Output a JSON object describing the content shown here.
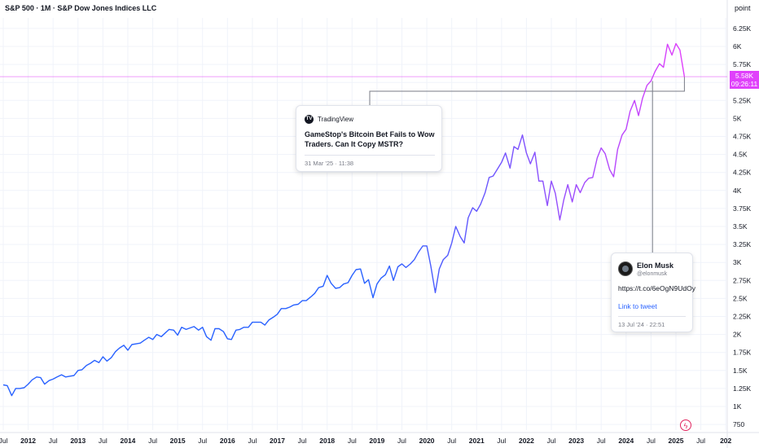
{
  "header": {
    "title": "S&P 500 · 1M · S&P Dow Jones Indices LLC"
  },
  "axis": {
    "unit_label": "point"
  },
  "price_tag": {
    "price": "5.58K",
    "countdown": "09:26:11",
    "color": "#e040fb"
  },
  "chart_data": {
    "type": "line",
    "title": "S&P 500 · 1M · S&P Dow Jones Indices LLC",
    "xlabel": "",
    "ylabel": "point",
    "ylim": [
      700,
      6500
    ],
    "y_ticks": [
      750,
      1000,
      1250,
      1500,
      1750,
      2000,
      2250,
      2500,
      2750,
      3000,
      3250,
      3500,
      3750,
      4000,
      4250,
      4500,
      4750,
      5000,
      5250,
      5500,
      5750,
      6000,
      6250
    ],
    "y_tick_labels": [
      "750",
      "1K",
      "1.25K",
      "1.5K",
      "1.75K",
      "2K",
      "2.25K",
      "2.5K",
      "2.75K",
      "3K",
      "3.25K",
      "3.5K",
      "3.75K",
      "4K",
      "4.25K",
      "4.5K",
      "4.75K",
      "5K",
      "5.25K",
      "5.5K",
      "5.75K",
      "6K",
      "6.25K"
    ],
    "x_ticks": [
      {
        "t": 2011.5,
        "label": "Jul"
      },
      {
        "t": 2012,
        "label": "2012"
      },
      {
        "t": 2012.5,
        "label": "Jul"
      },
      {
        "t": 2013,
        "label": "2013"
      },
      {
        "t": 2013.5,
        "label": "Jul"
      },
      {
        "t": 2014,
        "label": "2014"
      },
      {
        "t": 2014.5,
        "label": "Jul"
      },
      {
        "t": 2015,
        "label": "2015"
      },
      {
        "t": 2015.5,
        "label": "Jul"
      },
      {
        "t": 2016,
        "label": "2016"
      },
      {
        "t": 2016.5,
        "label": "Jul"
      },
      {
        "t": 2017,
        "label": "2017"
      },
      {
        "t": 2017.5,
        "label": "Jul"
      },
      {
        "t": 2018,
        "label": "2018"
      },
      {
        "t": 2018.5,
        "label": "Jul"
      },
      {
        "t": 2019,
        "label": "2019"
      },
      {
        "t": 2019.5,
        "label": "Jul"
      },
      {
        "t": 2020,
        "label": "2020"
      },
      {
        "t": 2020.5,
        "label": "Jul"
      },
      {
        "t": 2021,
        "label": "2021"
      },
      {
        "t": 2021.5,
        "label": "Jul"
      },
      {
        "t": 2022,
        "label": "2022"
      },
      {
        "t": 2022.5,
        "label": "Jul"
      },
      {
        "t": 2023,
        "label": "2023"
      },
      {
        "t": 2023.5,
        "label": "Jul"
      },
      {
        "t": 2024,
        "label": "2024"
      },
      {
        "t": 2024.5,
        "label": "Jul"
      },
      {
        "t": 2025,
        "label": "2025"
      },
      {
        "t": 2025.5,
        "label": "Jul"
      },
      {
        "t": 2026,
        "label": "202"
      }
    ],
    "xlim": [
      2011.5,
      2026.05
    ],
    "grid": true,
    "current_price": 5580,
    "series": [
      {
        "line_colors": [
          "#2962ff",
          "#e040fb"
        ],
        "points": [
          [
            2011.5,
            1300
          ],
          [
            2011.58,
            1290
          ],
          [
            2011.67,
            1150
          ],
          [
            2011.75,
            1250
          ],
          [
            2011.83,
            1250
          ],
          [
            2011.92,
            1260
          ],
          [
            2012.0,
            1310
          ],
          [
            2012.08,
            1370
          ],
          [
            2012.17,
            1410
          ],
          [
            2012.25,
            1400
          ],
          [
            2012.33,
            1310
          ],
          [
            2012.42,
            1360
          ],
          [
            2012.5,
            1380
          ],
          [
            2012.58,
            1410
          ],
          [
            2012.67,
            1440
          ],
          [
            2012.75,
            1410
          ],
          [
            2012.83,
            1420
          ],
          [
            2012.92,
            1430
          ],
          [
            2013.0,
            1500
          ],
          [
            2013.08,
            1510
          ],
          [
            2013.17,
            1570
          ],
          [
            2013.25,
            1600
          ],
          [
            2013.33,
            1640
          ],
          [
            2013.42,
            1610
          ],
          [
            2013.5,
            1690
          ],
          [
            2013.58,
            1630
          ],
          [
            2013.67,
            1680
          ],
          [
            2013.75,
            1760
          ],
          [
            2013.83,
            1810
          ],
          [
            2013.92,
            1850
          ],
          [
            2014.0,
            1780
          ],
          [
            2014.08,
            1860
          ],
          [
            2014.17,
            1870
          ],
          [
            2014.25,
            1880
          ],
          [
            2014.33,
            1920
          ],
          [
            2014.42,
            1960
          ],
          [
            2014.5,
            1930
          ],
          [
            2014.58,
            2000
          ],
          [
            2014.67,
            1970
          ],
          [
            2014.75,
            2020
          ],
          [
            2014.83,
            2070
          ],
          [
            2014.92,
            2060
          ],
          [
            2015.0,
            1990
          ],
          [
            2015.08,
            2100
          ],
          [
            2015.17,
            2070
          ],
          [
            2015.25,
            2090
          ],
          [
            2015.33,
            2110
          ],
          [
            2015.42,
            2060
          ],
          [
            2015.5,
            2100
          ],
          [
            2015.58,
            1970
          ],
          [
            2015.67,
            1920
          ],
          [
            2015.75,
            2080
          ],
          [
            2015.83,
            2080
          ],
          [
            2015.92,
            2040
          ],
          [
            2016.0,
            1940
          ],
          [
            2016.08,
            1930
          ],
          [
            2016.17,
            2060
          ],
          [
            2016.25,
            2070
          ],
          [
            2016.33,
            2100
          ],
          [
            2016.42,
            2100
          ],
          [
            2016.5,
            2170
          ],
          [
            2016.58,
            2170
          ],
          [
            2016.67,
            2170
          ],
          [
            2016.75,
            2130
          ],
          [
            2016.83,
            2200
          ],
          [
            2016.92,
            2240
          ],
          [
            2017.0,
            2280
          ],
          [
            2017.08,
            2360
          ],
          [
            2017.17,
            2360
          ],
          [
            2017.25,
            2380
          ],
          [
            2017.33,
            2410
          ],
          [
            2017.42,
            2420
          ],
          [
            2017.5,
            2470
          ],
          [
            2017.58,
            2470
          ],
          [
            2017.67,
            2520
          ],
          [
            2017.75,
            2570
          ],
          [
            2017.83,
            2650
          ],
          [
            2017.92,
            2670
          ],
          [
            2018.0,
            2820
          ],
          [
            2018.08,
            2710
          ],
          [
            2018.17,
            2640
          ],
          [
            2018.25,
            2650
          ],
          [
            2018.33,
            2700
          ],
          [
            2018.42,
            2720
          ],
          [
            2018.5,
            2820
          ],
          [
            2018.58,
            2900
          ],
          [
            2018.67,
            2910
          ],
          [
            2018.75,
            2710
          ],
          [
            2018.83,
            2760
          ],
          [
            2018.92,
            2510
          ],
          [
            2019.0,
            2700
          ],
          [
            2019.08,
            2780
          ],
          [
            2019.17,
            2830
          ],
          [
            2019.25,
            2950
          ],
          [
            2019.33,
            2750
          ],
          [
            2019.42,
            2940
          ],
          [
            2019.5,
            2980
          ],
          [
            2019.58,
            2930
          ],
          [
            2019.67,
            2980
          ],
          [
            2019.75,
            3040
          ],
          [
            2019.83,
            3140
          ],
          [
            2019.92,
            3230
          ],
          [
            2020.0,
            3230
          ],
          [
            2020.08,
            2950
          ],
          [
            2020.17,
            2580
          ],
          [
            2020.25,
            2910
          ],
          [
            2020.33,
            3040
          ],
          [
            2020.42,
            3100
          ],
          [
            2020.5,
            3270
          ],
          [
            2020.58,
            3500
          ],
          [
            2020.67,
            3360
          ],
          [
            2020.75,
            3270
          ],
          [
            2020.83,
            3620
          ],
          [
            2020.92,
            3760
          ],
          [
            2021.0,
            3710
          ],
          [
            2021.08,
            3810
          ],
          [
            2021.17,
            3970
          ],
          [
            2021.25,
            4180
          ],
          [
            2021.33,
            4200
          ],
          [
            2021.42,
            4300
          ],
          [
            2021.5,
            4390
          ],
          [
            2021.58,
            4520
          ],
          [
            2021.67,
            4310
          ],
          [
            2021.75,
            4610
          ],
          [
            2021.83,
            4570
          ],
          [
            2021.92,
            4770
          ],
          [
            2022.0,
            4520
          ],
          [
            2022.08,
            4370
          ],
          [
            2022.17,
            4530
          ],
          [
            2022.25,
            4130
          ],
          [
            2022.33,
            4130
          ],
          [
            2022.42,
            3790
          ],
          [
            2022.5,
            4130
          ],
          [
            2022.58,
            3960
          ],
          [
            2022.67,
            3590
          ],
          [
            2022.75,
            3870
          ],
          [
            2022.83,
            4080
          ],
          [
            2022.92,
            3840
          ],
          [
            2023.0,
            4080
          ],
          [
            2023.08,
            3970
          ],
          [
            2023.17,
            4110
          ],
          [
            2023.25,
            4170
          ],
          [
            2023.33,
            4180
          ],
          [
            2023.42,
            4450
          ],
          [
            2023.5,
            4590
          ],
          [
            2023.58,
            4510
          ],
          [
            2023.67,
            4290
          ],
          [
            2023.75,
            4190
          ],
          [
            2023.83,
            4570
          ],
          [
            2023.92,
            4770
          ],
          [
            2024.0,
            4850
          ],
          [
            2024.08,
            5100
          ],
          [
            2024.17,
            5250
          ],
          [
            2024.25,
            5040
          ],
          [
            2024.33,
            5280
          ],
          [
            2024.42,
            5460
          ],
          [
            2024.5,
            5520
          ],
          [
            2024.58,
            5650
          ],
          [
            2024.67,
            5760
          ],
          [
            2024.75,
            5710
          ],
          [
            2024.83,
            6030
          ],
          [
            2024.92,
            5880
          ],
          [
            2025.0,
            6040
          ],
          [
            2025.08,
            5950
          ],
          [
            2025.17,
            5580
          ]
        ]
      }
    ]
  },
  "news_card": {
    "source": "TradingView",
    "icon_glyph": "TV",
    "headline": "GameStop's Bitcoin Bet Fails to Wow Traders. Can It Copy MSTR?",
    "timestamp": "31 Mar '25 · 11:38"
  },
  "tweet_card": {
    "author": "Elon Musk",
    "handle": "@elonmusk",
    "text": "https://t.co/6eOgN9UdOy",
    "link_label": "Link to tweet",
    "timestamp": "13 Jul '24 · 22:51"
  },
  "bolt_button": {
    "icon": "lightning-bolt-icon",
    "glyph": "ϟ"
  }
}
